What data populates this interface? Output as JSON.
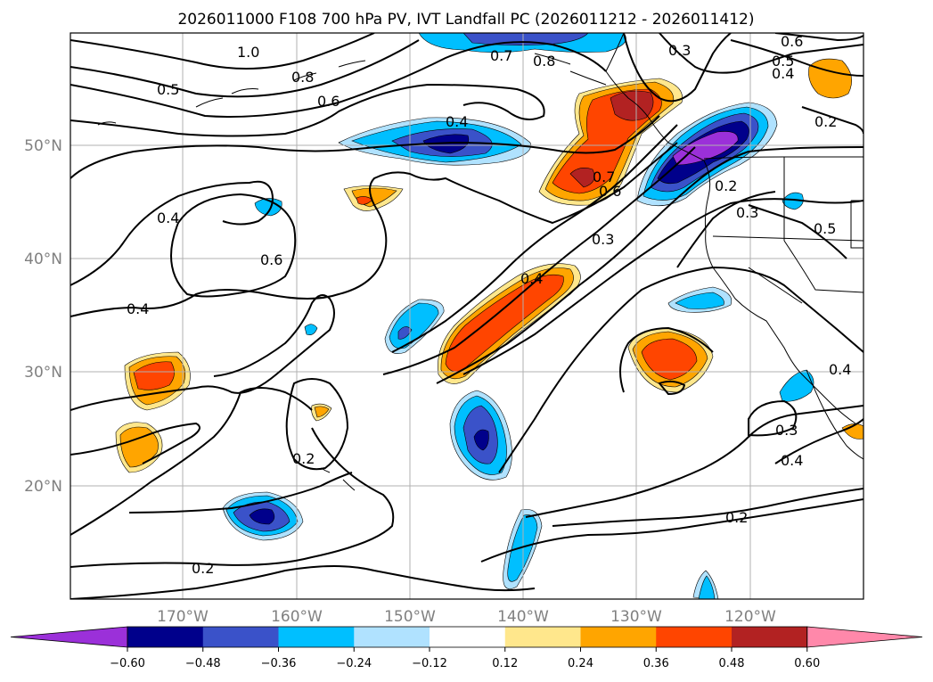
{
  "title": "2026011000 F108 700 hPa PV, IVT Landfall PC (2026011212 - 2026011412)",
  "map": {
    "lon_labels": [
      "170°W",
      "160°W",
      "150°W",
      "140°W",
      "130°W",
      "120°W"
    ],
    "lat_labels": [
      "50°N",
      "40°N",
      "30°N",
      "20°N"
    ],
    "grid": true,
    "contour_labels": [
      "1.0",
      "0.8",
      "0.5",
      "0.6",
      "0.4",
      "0.7",
      "0.8",
      "0.3",
      "0.6",
      "0.5",
      "0.4",
      "0.2",
      "0.4",
      "0.7",
      "0.6",
      "0.3",
      "0.2",
      "0.3",
      "0.5",
      "0.4",
      "0.6",
      "0.4",
      "0.4",
      "0.2",
      "0.3",
      "0.4",
      "0.2",
      "0.2"
    ]
  },
  "colorbar": {
    "ticks": [
      "−0.60",
      "−0.48",
      "−0.36",
      "−0.24",
      "−0.12",
      "0.12",
      "0.24",
      "0.36",
      "0.48",
      "0.60"
    ],
    "colors": [
      "#9b30d9",
      "#00008b",
      "#3a52c9",
      "#00bfff",
      "#b0e2ff",
      "#ffffff",
      "#ffe78c",
      "#ffa500",
      "#ff4500",
      "#b22222",
      "#ff88aa"
    ]
  }
}
